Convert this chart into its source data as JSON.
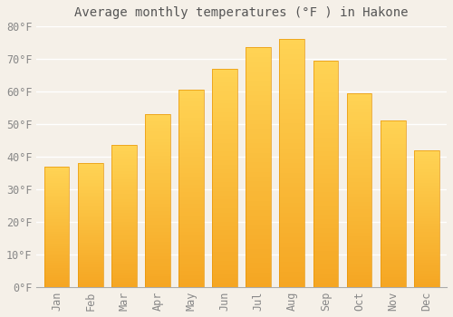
{
  "title": "Average monthly temperatures (°F ) in Hakone",
  "months": [
    "Jan",
    "Feb",
    "Mar",
    "Apr",
    "May",
    "Jun",
    "Jul",
    "Aug",
    "Sep",
    "Oct",
    "Nov",
    "Dec"
  ],
  "values": [
    37,
    38,
    43.5,
    53,
    60.5,
    67,
    73.5,
    76,
    69.5,
    59.5,
    51,
    42
  ],
  "bar_color_bottom": "#F5A623",
  "bar_color_top": "#FFCC44",
  "bar_color_gradient_mid": "#FDB827",
  "background_color": "#F5F0E8",
  "plot_bg_color": "#F5F0E8",
  "grid_color": "#FFFFFF",
  "text_color": "#888888",
  "title_color": "#555555",
  "ylim": [
    0,
    80
  ],
  "ytick_step": 10,
  "title_fontsize": 10,
  "tick_fontsize": 8.5,
  "bar_width": 0.75
}
